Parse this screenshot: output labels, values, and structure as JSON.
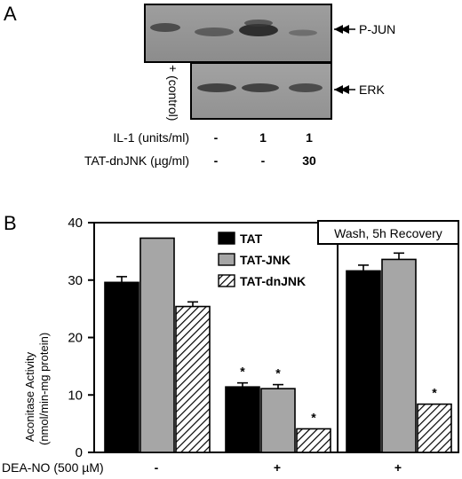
{
  "panel_a": {
    "letter": "A",
    "band_labels": {
      "top": "P-JUN",
      "bottom": "ERK"
    },
    "control_label": "+ (control)",
    "rows": [
      {
        "label": "IL-1 (units/ml)",
        "values": [
          "-",
          "1",
          "1"
        ]
      },
      {
        "label": "TAT-dnJNK (µg/ml)",
        "values": [
          "-",
          "-",
          "30"
        ]
      }
    ]
  },
  "panel_b": {
    "letter": "B",
    "recovery_box_label": "Wash, 5h Recovery",
    "condition_label": "DEA-NO (500 µM)",
    "condition_values": [
      "-",
      "+",
      "+"
    ]
  },
  "colors": {
    "TAT": "#000000",
    "TAT-JNK": "#a6a6a6",
    "TAT-dnJNK": "hatched"
  },
  "chart_data": {
    "type": "bar",
    "title": "",
    "xlabel": "DEA-NO (500 µM)",
    "ylabel": "Aconitase Activity (nmol/min-mg protein)",
    "ylim": [
      0,
      40
    ],
    "yticks": [
      "0",
      "10",
      "20",
      "30",
      "40"
    ],
    "categories": [
      "-",
      "+",
      "+"
    ],
    "series": [
      {
        "name": "TAT",
        "values": [
          29.6,
          11.4,
          31.6
        ],
        "errors": [
          1.0,
          0.7,
          1.0
        ],
        "significant": [
          false,
          true,
          false
        ]
      },
      {
        "name": "TAT-JNK",
        "values": [
          37.3,
          11.1,
          33.6
        ],
        "errors": [
          0,
          0.7,
          1.1
        ],
        "significant": [
          false,
          true,
          false
        ]
      },
      {
        "name": "TAT-dnJNK",
        "values": [
          25.4,
          4.1,
          8.4
        ],
        "errors": [
          0.8,
          0,
          0
        ],
        "significant": [
          false,
          true,
          true
        ]
      }
    ],
    "significance_marker": "*",
    "legend_position": "top-center"
  }
}
